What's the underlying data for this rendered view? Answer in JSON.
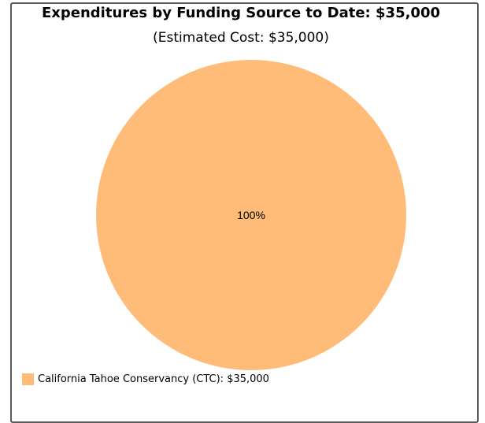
{
  "chart_data": {
    "type": "pie",
    "title": "Expenditures by Funding Source to Date: $35,000",
    "subtitle": "(Estimated Cost: $35,000)",
    "slices": [
      {
        "label": "California Tahoe Conservancy (CTC)",
        "value": 35000,
        "display_value": "$35,000",
        "percent_label": "100%",
        "color": "#FFBB78"
      }
    ],
    "legend": {
      "placement": "bottom-left",
      "entries": [
        "California Tahoe Conservancy (CTC): $35,000"
      ]
    }
  }
}
